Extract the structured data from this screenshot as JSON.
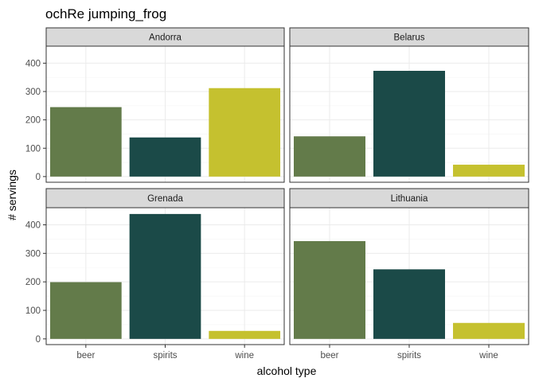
{
  "chart_data": {
    "type": "bar",
    "title": "ochRe jumping_frog",
    "xlabel": "alcohol type",
    "ylabel": "# servings",
    "categories": [
      "beer",
      "spirits",
      "wine"
    ],
    "ylim": [
      -20,
      460
    ],
    "yticks": [
      0,
      100,
      200,
      300,
      400
    ],
    "grid": true,
    "colors": {
      "beer": "#637b4a",
      "spirits": "#1b4a48",
      "wine": "#c5c12f",
      "strip_bg": "#d9d9d9",
      "grid": "#ebebeb",
      "panel_border": "#333333"
    },
    "panels": [
      {
        "name": "Andorra",
        "values": [
          245,
          138,
          312
        ]
      },
      {
        "name": "Belarus",
        "values": [
          142,
          373,
          42
        ]
      },
      {
        "name": "Grenada",
        "values": [
          199,
          438,
          28
        ]
      },
      {
        "name": "Lithuania",
        "values": [
          343,
          244,
          56
        ]
      }
    ]
  }
}
